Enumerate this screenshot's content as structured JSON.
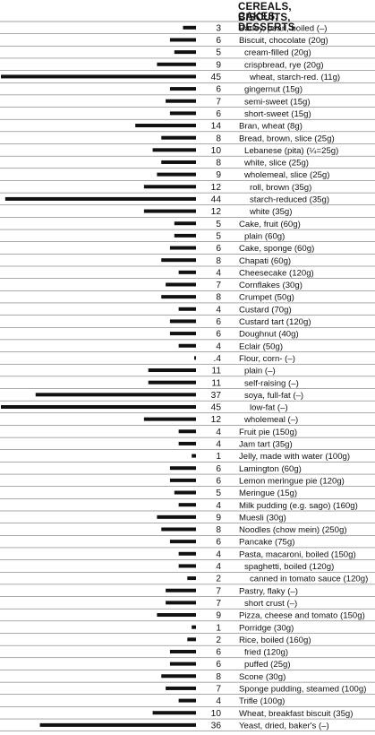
{
  "chart_data": {
    "type": "bar",
    "orientation": "horizontal",
    "title_lines": [
      "CEREALS, BISCUITS,",
      "CAKES, DESSERTS"
    ],
    "xlabel": "",
    "ylabel": "",
    "xlim": [
      0,
      45
    ],
    "grid": false,
    "bar_color": "#111111",
    "rows": [
      {
        "label": "Barley, pearl, boiled (–)",
        "display": "3",
        "value": 3,
        "indent": 0
      },
      {
        "label": "Biscuit, chocolate (20g)",
        "display": "6",
        "value": 6,
        "indent": 0
      },
      {
        "label": "cream-filled (20g)",
        "display": "5",
        "value": 5,
        "indent": 1
      },
      {
        "label": "crispbread, rye (20g)",
        "display": "9",
        "value": 9,
        "indent": 1
      },
      {
        "label": "wheat, starch-red. (11g)",
        "display": "45",
        "value": 45,
        "indent": 2
      },
      {
        "label": "gingernut (15g)",
        "display": "6",
        "value": 6,
        "indent": 1
      },
      {
        "label": "semi-sweet (15g)",
        "display": "7",
        "value": 7,
        "indent": 1
      },
      {
        "label": "short-sweet (15g)",
        "display": "6",
        "value": 6,
        "indent": 1
      },
      {
        "label": "Bran, wheat (8g)",
        "display": "14",
        "value": 14,
        "indent": 0
      },
      {
        "label": "Bread, brown, slice (25g)",
        "display": "8",
        "value": 8,
        "indent": 0
      },
      {
        "label": "Lebanese (pita) (¼=25g)",
        "display": "10",
        "value": 10,
        "indent": 1
      },
      {
        "label": "white, slice (25g)",
        "display": "8",
        "value": 8,
        "indent": 1
      },
      {
        "label": "wholemeal, slice (25g)",
        "display": "9",
        "value": 9,
        "indent": 1
      },
      {
        "label": "roll, brown (35g)",
        "display": "12",
        "value": 12,
        "indent": 2
      },
      {
        "label": "starch-reduced (35g)",
        "display": "44",
        "value": 44,
        "indent": 2
      },
      {
        "label": "white (35g)",
        "display": "12",
        "value": 12,
        "indent": 2
      },
      {
        "label": "Cake, fruit (60g)",
        "display": "5",
        "value": 5,
        "indent": 0
      },
      {
        "label": "plain (60g)",
        "display": "5",
        "value": 5,
        "indent": 1
      },
      {
        "label": "Cake, sponge (60g)",
        "display": "6",
        "value": 6,
        "indent": 0
      },
      {
        "label": "Chapati (60g)",
        "display": "8",
        "value": 8,
        "indent": 0
      },
      {
        "label": "Cheesecake (120g)",
        "display": "4",
        "value": 4,
        "indent": 0
      },
      {
        "label": "Cornflakes (30g)",
        "display": "7",
        "value": 7,
        "indent": 0
      },
      {
        "label": "Crumpet (50g)",
        "display": "8",
        "value": 8,
        "indent": 0
      },
      {
        "label": "Custard (70g)",
        "display": "4",
        "value": 4,
        "indent": 0
      },
      {
        "label": "Custard tart (120g)",
        "display": "6",
        "value": 6,
        "indent": 0
      },
      {
        "label": "Doughnut (40g)",
        "display": "6",
        "value": 6,
        "indent": 0
      },
      {
        "label": "Eclair (50g)",
        "display": "4",
        "value": 4,
        "indent": 0
      },
      {
        "label": "Flour, corn- (–)",
        "display": ".4",
        "value": 0.4,
        "indent": 0
      },
      {
        "label": "plain (–)",
        "display": "11",
        "value": 11,
        "indent": 1
      },
      {
        "label": "self-raising (–)",
        "display": "11",
        "value": 11,
        "indent": 1
      },
      {
        "label": "soya, full-fat (–)",
        "display": "37",
        "value": 37,
        "indent": 1
      },
      {
        "label": "low-fat (–)",
        "display": "45",
        "value": 45,
        "indent": 2
      },
      {
        "label": "wholemeal (–)",
        "display": "12",
        "value": 12,
        "indent": 1
      },
      {
        "label": "Fruit pie (150g)",
        "display": "4",
        "value": 4,
        "indent": 0
      },
      {
        "label": "Jam tart (35g)",
        "display": "4",
        "value": 4,
        "indent": 0
      },
      {
        "label": "Jelly, made with water (100g)",
        "display": "1",
        "value": 1,
        "indent": 0
      },
      {
        "label": "Lamington (60g)",
        "display": "6",
        "value": 6,
        "indent": 0
      },
      {
        "label": "Lemon meringue pie (120g)",
        "display": "6",
        "value": 6,
        "indent": 0
      },
      {
        "label": "Meringue (15g)",
        "display": "5",
        "value": 5,
        "indent": 0
      },
      {
        "label": "Milk pudding (e.g. sago) (160g)",
        "display": "4",
        "value": 4,
        "indent": 0
      },
      {
        "label": "Muesli (30g)",
        "display": "9",
        "value": 9,
        "indent": 0
      },
      {
        "label": "Noodles (chow mein) (250g)",
        "display": "8",
        "value": 8,
        "indent": 0
      },
      {
        "label": "Pancake (75g)",
        "display": "6",
        "value": 6,
        "indent": 0
      },
      {
        "label": "Pasta, macaroni, boiled (150g)",
        "display": "4",
        "value": 4,
        "indent": 0
      },
      {
        "label": "spaghetti, boiled (120g)",
        "display": "4",
        "value": 4,
        "indent": 1
      },
      {
        "label": "canned in tomato sauce (120g)",
        "display": "2",
        "value": 2,
        "indent": 2
      },
      {
        "label": "Pastry, flaky (–)",
        "display": "7",
        "value": 7,
        "indent": 0
      },
      {
        "label": "short crust (–)",
        "display": "7",
        "value": 7,
        "indent": 1
      },
      {
        "label": "Pizza, cheese and tomato (150g)",
        "display": "9",
        "value": 9,
        "indent": 0
      },
      {
        "label": "Porridge (30g)",
        "display": "1",
        "value": 1,
        "indent": 0
      },
      {
        "label": "Rice, boiled (160g)",
        "display": "2",
        "value": 2,
        "indent": 0
      },
      {
        "label": "fried (120g)",
        "display": "6",
        "value": 6,
        "indent": 1
      },
      {
        "label": "puffed (25g)",
        "display": "6",
        "value": 6,
        "indent": 1
      },
      {
        "label": "Scone (30g)",
        "display": "8",
        "value": 8,
        "indent": 0
      },
      {
        "label": "Sponge pudding, steamed (100g)",
        "display": "7",
        "value": 7,
        "indent": 0
      },
      {
        "label": "Trifle (100g)",
        "display": "4",
        "value": 4,
        "indent": 0
      },
      {
        "label": "Wheat, breakfast biscuit (35g)",
        "display": "10",
        "value": 10,
        "indent": 0
      },
      {
        "label": "Yeast, dried, baker's (–)",
        "display": "36",
        "value": 36,
        "indent": 0
      }
    ]
  }
}
